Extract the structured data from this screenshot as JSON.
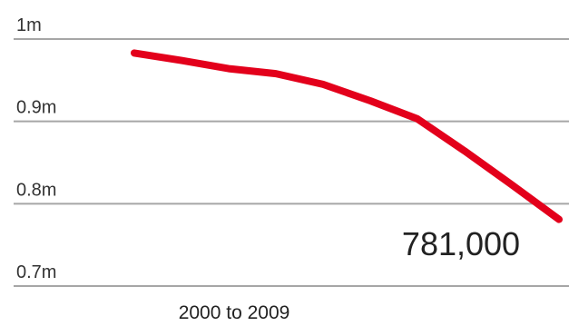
{
  "chart_data": {
    "type": "line",
    "y_ticks": [
      {
        "value": 1000000,
        "label": "1m"
      },
      {
        "value": 900000,
        "label": "0.9m"
      },
      {
        "value": 800000,
        "label": "0.8m"
      },
      {
        "value": 700000,
        "label": "0.7m"
      }
    ],
    "ylim": [
      700000,
      1000000
    ],
    "x": [
      2000,
      2001,
      2002,
      2003,
      2004,
      2005,
      2006,
      2007,
      2008,
      2009
    ],
    "xlim": [
      2000,
      2009
    ],
    "xlabel": "2000 to 2009",
    "series": [
      {
        "values": [
          983000,
          974000,
          964000,
          958000,
          945000,
          925000,
          903000,
          864000,
          823000,
          781000
        ],
        "color": "#e3001b"
      }
    ],
    "annotation": {
      "text": "781,000"
    },
    "grid": true
  }
}
